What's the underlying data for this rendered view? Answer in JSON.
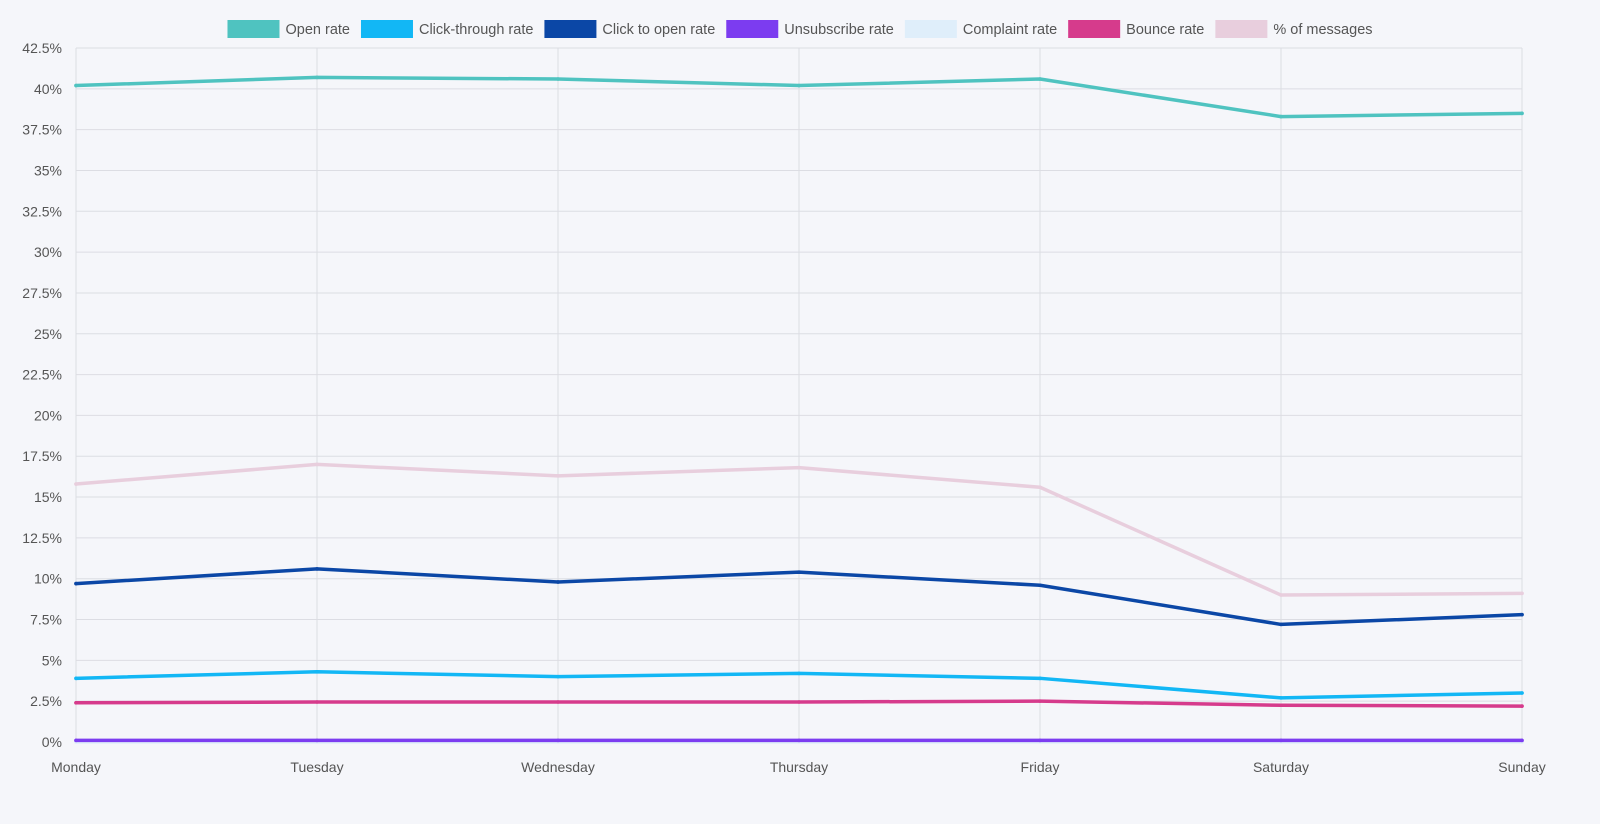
{
  "chart_data": {
    "type": "line",
    "categories": [
      "Monday",
      "Tuesday",
      "Wednesday",
      "Thursday",
      "Friday",
      "Saturday",
      "Sunday"
    ],
    "ylim": [
      0,
      42.5
    ],
    "y_ticks": [
      0,
      2.5,
      5,
      7.5,
      10,
      12.5,
      15,
      17.5,
      20,
      22.5,
      25,
      27.5,
      30,
      32.5,
      35,
      37.5,
      40,
      42.5
    ],
    "y_tick_labels": [
      "0%",
      "2.5%",
      "5%",
      "7.5%",
      "10%",
      "12.5%",
      "15%",
      "17.5%",
      "20%",
      "22.5%",
      "25%",
      "27.5%",
      "30%",
      "32.5%",
      "35%",
      "37.5%",
      "40%",
      "42.5%"
    ],
    "y_unit": "%",
    "grid": true,
    "legend_position": "top-center",
    "series": [
      {
        "name": "Open rate",
        "color": "#4fc3c0",
        "values": [
          40.2,
          40.7,
          40.6,
          40.2,
          40.6,
          38.3,
          38.5
        ]
      },
      {
        "name": "Click-through rate",
        "color": "#12b7f5",
        "values": [
          3.9,
          4.3,
          4.0,
          4.2,
          3.9,
          2.7,
          3.0
        ]
      },
      {
        "name": "Click to open rate",
        "color": "#0b47a6",
        "values": [
          9.7,
          10.6,
          9.8,
          10.4,
          9.6,
          7.2,
          7.8
        ]
      },
      {
        "name": "Unsubscribe rate",
        "color": "#7c3cf0",
        "values": [
          0.1,
          0.1,
          0.1,
          0.1,
          0.1,
          0.1,
          0.1
        ]
      },
      {
        "name": "Complaint rate",
        "color": "#dfeefa",
        "values": [
          0.0,
          0.0,
          0.0,
          0.0,
          0.0,
          0.0,
          0.0
        ]
      },
      {
        "name": "Bounce rate",
        "color": "#d63b8c",
        "values": [
          2.4,
          2.45,
          2.45,
          2.45,
          2.5,
          2.25,
          2.2
        ]
      },
      {
        "name": "% of messages",
        "color": "#e8cedd",
        "values": [
          15.8,
          17.0,
          16.3,
          16.8,
          15.6,
          9.0,
          9.1
        ]
      }
    ]
  }
}
